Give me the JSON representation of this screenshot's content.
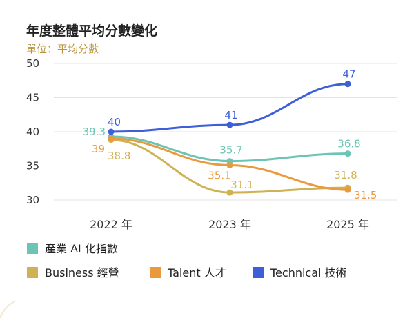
{
  "chart_data": {
    "type": "line",
    "title": "年度整體平均分數變化",
    "subtitle": "單位：平均分數",
    "categories": [
      "2022 年",
      "2023 年",
      "2025 年"
    ],
    "ylim": [
      30,
      50
    ],
    "yticks": [
      30,
      35,
      40,
      45,
      50
    ],
    "grid": true,
    "legend_position": "bottom",
    "series": [
      {
        "name": "產業 AI 化指數",
        "color": "#6cc4b4",
        "values": [
          39.3,
          35.7,
          36.8
        ],
        "labels": [
          "39.3",
          "35.7",
          "36.8"
        ]
      },
      {
        "name": "Business 經營",
        "color": "#cfb253",
        "values": [
          38.8,
          31.1,
          31.8
        ],
        "labels": [
          "38.8",
          "31.1",
          "31.8"
        ]
      },
      {
        "name": "Talent 人才",
        "color": "#ea9a3d",
        "values": [
          39,
          35.1,
          31.5
        ],
        "labels": [
          "39",
          "35.1",
          "31.5"
        ]
      },
      {
        "name": "Technical 技術",
        "color": "#3e5fd8",
        "values": [
          40,
          41,
          47
        ],
        "labels": [
          "40",
          "41",
          "47"
        ]
      }
    ]
  }
}
